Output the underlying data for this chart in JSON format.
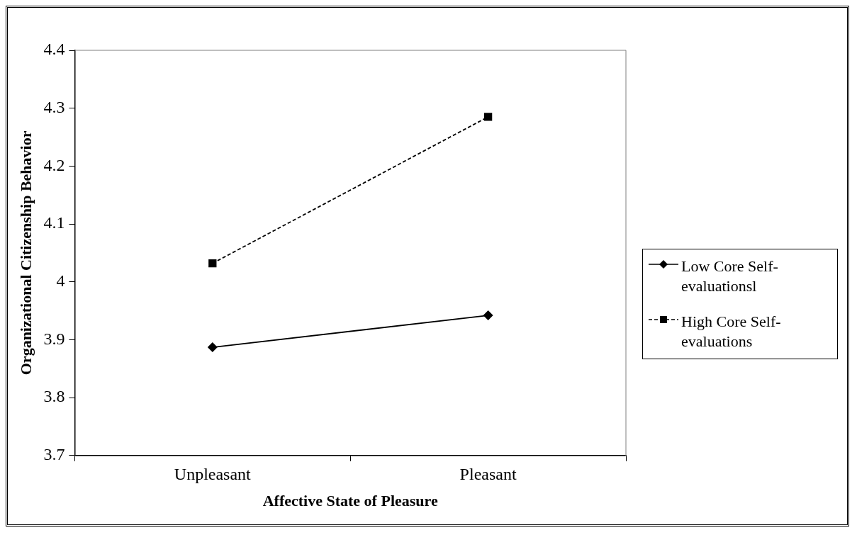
{
  "chart_data": {
    "type": "line",
    "xlabel": "Affective State of Pleasure",
    "ylabel": "Organizational Citizenship Behavior",
    "categories": [
      "Unpleasant",
      "Pleasant"
    ],
    "series": [
      {
        "name": "Low Core Self-evaluationsl",
        "color": "#000000",
        "values": [
          3.887,
          3.942
        ],
        "marker": "diamond",
        "line_style": "solid"
      },
      {
        "name": "High Core Self-evaluations",
        "color": "#000000",
        "values": [
          4.032,
          4.285
        ],
        "marker": "square",
        "line_style": "dashed"
      }
    ],
    "ylim": [
      3.7,
      4.4
    ],
    "yticks": [
      3.7,
      3.8,
      3.9,
      4,
      4.1,
      4.2,
      4.3,
      4.4
    ],
    "grid": false,
    "legend": "right"
  }
}
